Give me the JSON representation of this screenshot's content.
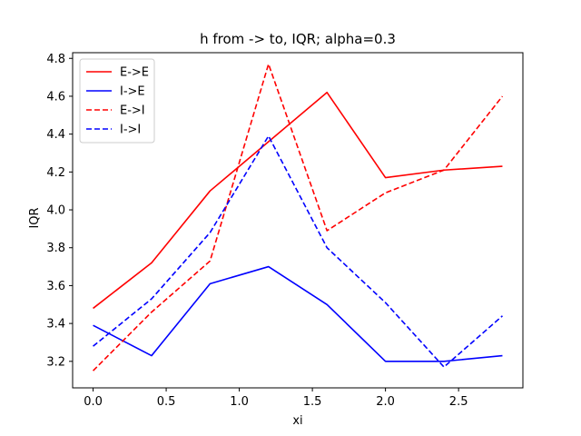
{
  "chart_data": {
    "type": "line",
    "title": "h from -> to, IQR; alpha=0.3",
    "xlabel": "xi",
    "ylabel": "IQR",
    "xlim": [
      -0.14,
      2.94
    ],
    "ylim": [
      3.06,
      4.83
    ],
    "x_ticks": [
      0.0,
      0.5,
      1.0,
      1.5,
      2.0,
      2.5
    ],
    "x_tick_labels": [
      "0.0",
      "0.5",
      "1.0",
      "1.5",
      "2.0",
      "2.5"
    ],
    "y_ticks": [
      3.2,
      3.4,
      3.6,
      3.8,
      4.0,
      4.2,
      4.4,
      4.6,
      4.8
    ],
    "y_tick_labels": [
      "3.2",
      "3.4",
      "3.6",
      "3.8",
      "4.0",
      "4.2",
      "4.4",
      "4.6",
      "4.8"
    ],
    "grid": false,
    "legend_position": "top-left",
    "x": [
      0.0,
      0.4,
      0.8,
      1.2,
      1.6,
      2.0,
      2.4,
      2.8
    ],
    "series": [
      {
        "name": "E->E",
        "color": "#ff0000",
        "dash": "solid",
        "values": [
          3.48,
          3.72,
          4.1,
          4.36,
          4.62,
          4.17,
          4.21,
          4.23
        ]
      },
      {
        "name": "I->E",
        "color": "#0000ff",
        "dash": "solid",
        "values": [
          3.39,
          3.23,
          3.61,
          3.7,
          3.5,
          3.2,
          3.2,
          3.23
        ]
      },
      {
        "name": "E->I",
        "color": "#ff0000",
        "dash": "dashed",
        "values": [
          3.15,
          3.46,
          3.73,
          4.77,
          3.89,
          4.09,
          4.21,
          4.6
        ]
      },
      {
        "name": "I->I",
        "color": "#0000ff",
        "dash": "dashed",
        "values": [
          3.28,
          3.53,
          3.88,
          4.39,
          3.8,
          3.51,
          3.17,
          3.44
        ]
      }
    ]
  }
}
